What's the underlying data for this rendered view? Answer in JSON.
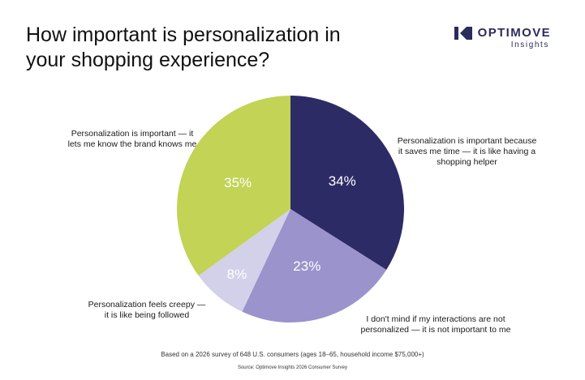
{
  "header": {
    "title": "How important is personalization in your shopping experience?"
  },
  "brand": {
    "name": "OPTIMOVE",
    "sub": "Insights",
    "icon": "optimove-logo-icon",
    "color": "#2b2b5e"
  },
  "chart_data": {
    "type": "pie",
    "title": "How important is personalization in your shopping experience?",
    "start": "12 o'clock, clockwise",
    "slices": [
      {
        "label": "Personalization is important because it saves me time — it is like having a shopping helper",
        "value": 34,
        "display": "34%",
        "color": "#2d2b66"
      },
      {
        "label": "I don't mind if my interactions are not personalized — it is not important to me",
        "value": 23,
        "display": "23%",
        "color": "#9a93cc"
      },
      {
        "label": "Personalization feels creepy — it is like being followed",
        "value": 8,
        "display": "8%",
        "color": "#d3d0ea"
      },
      {
        "label": "Personalization is important — it lets me know the brand knows me",
        "value": 35,
        "display": "35%",
        "color": "#c2d356"
      }
    ]
  },
  "callouts": {
    "brand_knows": "Personalization is important — it lets me know the brand knows me",
    "saves_time": "Personalization is important because it saves me time — it is like having a shopping helper",
    "creepy": "Personalization feels creepy — it is like being followed",
    "not_important": "I don't mind if my interactions are not personalized — it is not important to me"
  },
  "footer": {
    "note": "Based on a 2026 survey of 648 U.S. consumers (ages 18–65, household income $75,000+)",
    "source": "Source: Optimove Insights 2026 Consumer Survey"
  }
}
